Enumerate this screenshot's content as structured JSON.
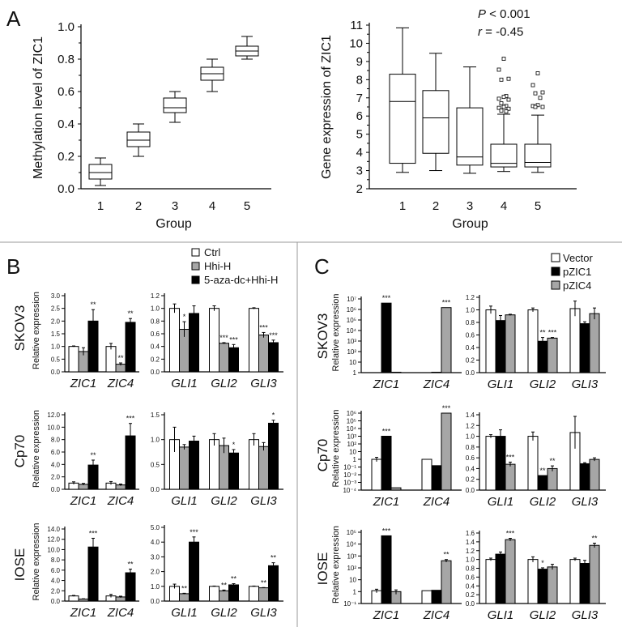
{
  "panels": {
    "A": "A",
    "B": "B",
    "C": "C"
  },
  "panelA": {
    "stats": {
      "p": "P",
      "p_rest": " < 0.001",
      "r": "r",
      "r_rest": " = -0.45"
    }
  },
  "legendB": [
    "Ctrl",
    "Hhi-H",
    "5-aza-dc+Hhi-H"
  ],
  "legendC": [
    "Vector",
    "pZIC1",
    "pZIC4"
  ],
  "colors": {
    "white": "#ffffff",
    "gray": "#a6a6a6",
    "black": "#000000"
  },
  "rows": [
    "SKOV3",
    "Cp70",
    "IOSE"
  ],
  "chart_data": [
    {
      "id": "A1",
      "type": "box",
      "ylabel": "Methylation level of ZIC1",
      "xlabel": "Group",
      "categories": [
        "1",
        "2",
        "3",
        "4",
        "5"
      ],
      "ylim": [
        0,
        1.0
      ],
      "yticks": [
        "0.0",
        "0.2",
        "0.4",
        "0.6",
        "0.8",
        "1.0"
      ],
      "boxes": [
        {
          "min": 0.02,
          "q1": 0.06,
          "med": 0.1,
          "q3": 0.15,
          "max": 0.19,
          "outliers": []
        },
        {
          "min": 0.2,
          "q1": 0.26,
          "med": 0.3,
          "q3": 0.35,
          "max": 0.4,
          "outliers": []
        },
        {
          "min": 0.41,
          "q1": 0.47,
          "med": 0.5,
          "q3": 0.56,
          "max": 0.6,
          "outliers": []
        },
        {
          "min": 0.6,
          "q1": 0.67,
          "med": 0.71,
          "q3": 0.75,
          "max": 0.8,
          "outliers": []
        },
        {
          "min": 0.8,
          "q1": 0.82,
          "med": 0.85,
          "q3": 0.88,
          "max": 0.94,
          "outliers": []
        }
      ]
    },
    {
      "id": "A2",
      "type": "box",
      "ylabel": "Gene expression of ZIC1",
      "xlabel": "Group",
      "categories": [
        "1",
        "2",
        "3",
        "4",
        "5"
      ],
      "ylim": [
        2,
        11
      ],
      "yticks": [
        "2",
        "3",
        "4",
        "5",
        "6",
        "7",
        "8",
        "9",
        "10",
        "11"
      ],
      "boxes": [
        {
          "min": 2.9,
          "q1": 3.4,
          "med": 6.8,
          "q3": 8.3,
          "max": 10.85,
          "outliers": []
        },
        {
          "min": 3.0,
          "q1": 3.95,
          "med": 5.9,
          "q3": 7.4,
          "max": 9.45,
          "outliers": []
        },
        {
          "min": 2.85,
          "q1": 3.3,
          "med": 3.75,
          "q3": 6.45,
          "max": 8.7,
          "outliers": []
        },
        {
          "min": 2.95,
          "q1": 3.2,
          "med": 3.4,
          "q3": 4.45,
          "max": 6.1,
          "outliers": [
            9.15,
            8.55,
            8.05,
            8.0,
            7.1,
            7.05,
            6.95,
            6.9,
            6.7,
            6.55,
            6.5,
            6.45,
            6.4,
            6.3,
            6.25
          ]
        },
        {
          "min": 2.9,
          "q1": 3.2,
          "med": 3.45,
          "q3": 4.45,
          "max": 6.05,
          "outliers": [
            8.35,
            7.7,
            7.3,
            7.25,
            7.0,
            6.6,
            6.55,
            6.5,
            6.5
          ]
        }
      ]
    },
    {
      "id": "B-SKOV3-ZIC",
      "type": "bar",
      "scale": "linear",
      "ylim": [
        0,
        3.0
      ],
      "yticks": [
        "0.0",
        "0.5",
        "1.0",
        "1.5",
        "2.0",
        "2.5",
        "3.0"
      ],
      "ylabel": "Relative expression",
      "series": [
        "Ctrl",
        "Hhi-H",
        "5-aza-dc+Hhi-H"
      ],
      "groups": [
        {
          "label": "ZIC1",
          "values": [
            1.0,
            0.8,
            2.0
          ],
          "errors": [
            0.02,
            0.15,
            0.45
          ],
          "sig": [
            "",
            "",
            "**"
          ]
        },
        {
          "label": "ZIC4",
          "values": [
            1.0,
            0.3,
            1.95
          ],
          "errors": [
            0.12,
            0.05,
            0.15
          ],
          "sig": [
            "",
            "**",
            ""
          ],
          "sig2": [
            "",
            "",
            "**"
          ]
        }
      ]
    },
    {
      "id": "B-SKOV3-GLI",
      "type": "bar",
      "scale": "linear",
      "ylim": [
        0,
        1.2
      ],
      "yticks": [
        "0.0",
        "0.2",
        "0.4",
        "0.6",
        "0.8",
        "1.0",
        "1.2"
      ],
      "series": [
        "Ctrl",
        "Hhi-H",
        "5-aza-dc+Hhi-H"
      ],
      "groups": [
        {
          "label": "GLI1",
          "values": [
            1.0,
            0.67,
            0.92
          ],
          "errors": [
            0.07,
            0.12,
            0.12
          ],
          "sig": [
            "",
            "*",
            ""
          ]
        },
        {
          "label": "GLI2",
          "values": [
            1.0,
            0.45,
            0.38
          ],
          "errors": [
            0.04,
            0.01,
            0.05
          ],
          "sig": [
            "",
            "***",
            "***"
          ]
        },
        {
          "label": "GLI3",
          "values": [
            1.0,
            0.58,
            0.46
          ],
          "errors": [
            0.01,
            0.04,
            0.04
          ],
          "sig": [
            "",
            "***",
            "***"
          ]
        }
      ]
    },
    {
      "id": "B-Cp70-ZIC",
      "type": "bar",
      "scale": "linear",
      "ylim": [
        0,
        12.0
      ],
      "yticks": [
        "0.0",
        "2.0",
        "4.0",
        "6.0",
        "8.0",
        "10.0",
        "12.0"
      ],
      "ylabel": "Relative expression",
      "series": [
        "Ctrl",
        "Hhi-H",
        "5-aza-dc+Hhi-H"
      ],
      "groups": [
        {
          "label": "ZIC1",
          "values": [
            1.0,
            0.8,
            3.9
          ],
          "errors": [
            0.2,
            0.15,
            0.8
          ],
          "sig": [
            "",
            "",
            "**"
          ]
        },
        {
          "label": "ZIC4",
          "values": [
            1.0,
            0.7,
            8.6
          ],
          "errors": [
            0.25,
            0.15,
            2.0
          ],
          "sig": [
            "",
            "",
            "***"
          ]
        }
      ]
    },
    {
      "id": "B-Cp70-GLI",
      "type": "bar",
      "scale": "linear",
      "ylim": [
        0,
        1.5
      ],
      "yticks": [
        "0.0",
        "0.5",
        "1.0",
        "1.5"
      ],
      "series": [
        "Ctrl",
        "Hhi-H",
        "5-aza-dc+Hhi-H"
      ],
      "groups": [
        {
          "label": "GLI1",
          "values": [
            1.0,
            0.85,
            0.97
          ],
          "errors": [
            0.25,
            0.05,
            0.1
          ],
          "sig": [
            "",
            "",
            ""
          ]
        },
        {
          "label": "GLI2",
          "values": [
            1.0,
            0.88,
            0.73
          ],
          "errors": [
            0.12,
            0.15,
            0.07
          ],
          "sig": [
            "",
            "",
            "*"
          ]
        },
        {
          "label": "GLI3",
          "values": [
            1.0,
            0.86,
            1.33
          ],
          "errors": [
            0.12,
            0.08,
            0.06
          ],
          "sig": [
            "",
            "",
            "*"
          ]
        }
      ]
    },
    {
      "id": "B-IOSE-ZIC",
      "type": "bar",
      "scale": "linear",
      "ylim": [
        0,
        14.0
      ],
      "yticks": [
        "0.0",
        "2.0",
        "4.0",
        "6.0",
        "8.0",
        "10.0",
        "12.0",
        "14.0"
      ],
      "ylabel": "Relative expression",
      "series": [
        "Ctrl",
        "Hhi-H",
        "5-aza-dc+Hhi-H"
      ],
      "groups": [
        {
          "label": "ZIC1",
          "values": [
            1.0,
            0.4,
            10.5
          ],
          "errors": [
            0.1,
            0.05,
            1.7
          ],
          "sig": [
            "",
            "",
            "***"
          ]
        },
        {
          "label": "ZIC4",
          "values": [
            1.0,
            0.8,
            5.5
          ],
          "errors": [
            0.3,
            0.15,
            0.7
          ],
          "sig": [
            "",
            "",
            "**"
          ]
        }
      ]
    },
    {
      "id": "B-IOSE-GLI",
      "type": "bar",
      "scale": "linear",
      "ylim": [
        0,
        5.0
      ],
      "yticks": [
        "0.0",
        "1.0",
        "2.0",
        "3.0",
        "4.0",
        "5.0"
      ],
      "series": [
        "Ctrl",
        "Hhi-H",
        "5-aza-dc+Hhi-H"
      ],
      "groups": [
        {
          "label": "GLI1",
          "values": [
            1.0,
            0.5,
            4.0
          ],
          "errors": [
            0.15,
            0.03,
            0.35
          ],
          "sig": [
            "",
            "**",
            "***"
          ]
        },
        {
          "label": "GLI2",
          "values": [
            1.0,
            0.7,
            1.1
          ],
          "errors": [
            0.02,
            0.05,
            0.08
          ],
          "sig": [
            "",
            "**",
            "**"
          ]
        },
        {
          "label": "GLI3",
          "values": [
            1.0,
            0.9,
            2.4
          ],
          "errors": [
            0.02,
            0.02,
            0.2
          ],
          "sig": [
            "",
            "**",
            "**"
          ]
        }
      ]
    },
    {
      "id": "C-SKOV3-ZIC",
      "type": "bar",
      "scale": "log",
      "ylim": [
        0,
        7
      ],
      "yticks": [
        "1",
        "10",
        "10²",
        "10³",
        "10⁴",
        "10⁵",
        "10⁶",
        "10⁷"
      ],
      "ylabel": "Relative expression",
      "series": [
        "Vector",
        "pZIC1",
        "pZIC4"
      ],
      "groups": [
        {
          "label": "ZIC1",
          "values": [
            1,
            4000000,
            1.1
          ],
          "errors": [
            0,
            0,
            0
          ],
          "sig": [
            "",
            "***",
            ""
          ]
        },
        {
          "label": "ZIC4",
          "values": [
            1,
            1.1,
            1500000
          ],
          "errors": [
            0,
            0,
            0
          ],
          "sig": [
            "",
            "",
            "***"
          ]
        }
      ]
    },
    {
      "id": "C-SKOV3-GLI",
      "type": "bar",
      "scale": "linear",
      "ylim": [
        0,
        1.2
      ],
      "yticks": [
        "0.0",
        "0.2",
        "0.4",
        "0.6",
        "0.8",
        "1.0",
        "1.2"
      ],
      "series": [
        "Vector",
        "pZIC1",
        "pZIC4"
      ],
      "groups": [
        {
          "label": "GLI1",
          "values": [
            1.0,
            0.83,
            0.92
          ],
          "errors": [
            0.06,
            0.08,
            0.01
          ],
          "sig": [
            "",
            "",
            ""
          ]
        },
        {
          "label": "GLI2",
          "values": [
            1.0,
            0.5,
            0.55
          ],
          "errors": [
            0.03,
            0.06,
            0.01
          ],
          "sig": [
            "",
            "**",
            "***"
          ]
        },
        {
          "label": "GLI3",
          "values": [
            1.02,
            0.78,
            0.94
          ],
          "errors": [
            0.12,
            0.03,
            0.09
          ],
          "sig": [
            "",
            "",
            ""
          ]
        }
      ]
    },
    {
      "id": "C-Cp70-ZIC",
      "type": "bar",
      "scale": "log",
      "ylim": [
        -4,
        6
      ],
      "yticks": [
        "10⁻⁴",
        "10⁻³",
        "10⁻²",
        "10⁻¹",
        "1",
        "10",
        "10²",
        "10³",
        "10⁴",
        "10⁵",
        "10⁶"
      ],
      "ylabel": "Relative expression",
      "series": [
        "Vector",
        "pZIC1",
        "pZIC4"
      ],
      "groups": [
        {
          "label": "ZIC1",
          "values": [
            1.0,
            1000,
            0.0002
          ],
          "errors": [
            0.8,
            0,
            0
          ],
          "sig": [
            "",
            "***",
            ""
          ]
        },
        {
          "label": "ZIC4",
          "values": [
            1.0,
            0.15,
            1000000
          ],
          "errors": [
            0,
            0,
            0
          ],
          "sig": [
            "",
            "",
            "***"
          ]
        }
      ]
    },
    {
      "id": "C-Cp70-GLI",
      "type": "bar",
      "scale": "linear",
      "ylim": [
        0,
        1.4
      ],
      "yticks": [
        "0.0",
        "0.2",
        "0.4",
        "0.6",
        "0.8",
        "1.0",
        "1.2",
        "1.4"
      ],
      "series": [
        "Vector",
        "pZIC1",
        "pZIC4"
      ],
      "groups": [
        {
          "label": "GLI1",
          "values": [
            1.0,
            1.0,
            0.48
          ],
          "errors": [
            0.03,
            0.12,
            0.04
          ],
          "sig": [
            "",
            "",
            "***"
          ]
        },
        {
          "label": "GLI2",
          "values": [
            1.0,
            0.27,
            0.4
          ],
          "errors": [
            0.08,
            0.0,
            0.05
          ],
          "sig": [
            "",
            "**",
            "**"
          ]
        },
        {
          "label": "GLI3",
          "values": [
            1.07,
            0.49,
            0.57
          ],
          "errors": [
            0.3,
            0.02,
            0.03
          ],
          "sig": [
            "",
            "",
            ""
          ]
        }
      ]
    },
    {
      "id": "C-IOSE-ZIC",
      "type": "bar",
      "scale": "log",
      "ylim": [
        -1,
        5
      ],
      "yticks": [
        "10⁻¹",
        "1",
        "10",
        "10²",
        "10³",
        "10⁴",
        "10⁵"
      ],
      "ylabel": "Relative expression",
      "series": [
        "Vector",
        "pZIC1",
        "pZIC4"
      ],
      "groups": [
        {
          "label": "ZIC1",
          "values": [
            1.2,
            50000,
            1.0
          ],
          "errors": [
            0.4,
            0,
            0.4
          ],
          "sig": [
            "",
            "***",
            ""
          ]
        },
        {
          "label": "ZIC4",
          "values": [
            1.2,
            1.3,
            400
          ],
          "errors": [
            0,
            0,
            100
          ],
          "sig": [
            "",
            "",
            "**"
          ]
        }
      ]
    },
    {
      "id": "C-IOSE-GLI",
      "type": "bar",
      "scale": "linear",
      "ylim": [
        0,
        1.6
      ],
      "yticks": [
        "0.0",
        "0.2",
        "0.4",
        "0.6",
        "0.8",
        "1.0",
        "1.2",
        "1.4",
        "1.6"
      ],
      "series": [
        "Vector",
        "pZIC1",
        "pZIC4"
      ],
      "groups": [
        {
          "label": "GLI1",
          "values": [
            1.0,
            1.12,
            1.45
          ],
          "errors": [
            0.03,
            0.05,
            0.03
          ],
          "sig": [
            "",
            "",
            "***"
          ]
        },
        {
          "label": "GLI2",
          "values": [
            1.0,
            0.78,
            0.83
          ],
          "errors": [
            0.06,
            0.03,
            0.06
          ],
          "sig": [
            "",
            "*",
            ""
          ]
        },
        {
          "label": "GLI3",
          "values": [
            1.0,
            0.91,
            1.32
          ],
          "errors": [
            0.03,
            0.07,
            0.05
          ],
          "sig": [
            "",
            "",
            "**"
          ]
        }
      ]
    }
  ]
}
